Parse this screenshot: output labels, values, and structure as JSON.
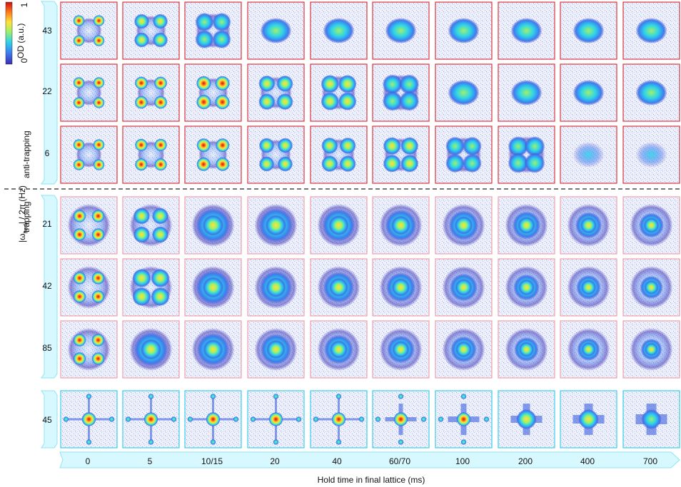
{
  "figure": {
    "colorbar": {
      "min_label": "0",
      "max_label": "1",
      "title": "OD (a.u.)",
      "colors": [
        "#3b2db3",
        "#3c7df0",
        "#2fd4e8",
        "#9ef06b",
        "#ffe23a",
        "#ff7a1a",
        "#cc1010"
      ]
    },
    "y_axis_title_main": "|ω",
    "y_axis_title_sub": "horl",
    "y_axis_title_rest": "| / 2π (Hz)",
    "group_labels": {
      "anti_trapping": "anti-trapping",
      "trapping": "trapping"
    },
    "row_labels": [
      "43",
      "22",
      "6",
      "21",
      "42",
      "85",
      "45"
    ],
    "column_labels": [
      "0",
      "5",
      "10/15",
      "20",
      "40",
      "60/70",
      "100",
      "200",
      "400",
      "700"
    ],
    "x_axis_title": "Hold time in final lattice (ms)",
    "colors": {
      "anti_trapping_frame": "#d9363e",
      "trapping_frame": "#f0a0a8",
      "bottom_frame": "#38d0e8",
      "arrow_fill": "#d8f8ff",
      "arrow_stroke": "#8fe3f0"
    }
  },
  "chart_data": {
    "type": "image-grid",
    "rows": [
      "43",
      "22",
      "6",
      "21",
      "42",
      "85",
      "45"
    ],
    "columns": [
      "0",
      "5",
      "10/15",
      "20",
      "40",
      "60/70",
      "100",
      "200",
      "400",
      "700"
    ],
    "row_groups": [
      {
        "label": "anti-trapping",
        "rows": [
          "43",
          "22",
          "6"
        ]
      },
      {
        "label": "trapping",
        "rows": [
          "21",
          "42",
          "85"
        ]
      },
      {
        "label": "",
        "rows": [
          "45"
        ]
      }
    ]
  }
}
